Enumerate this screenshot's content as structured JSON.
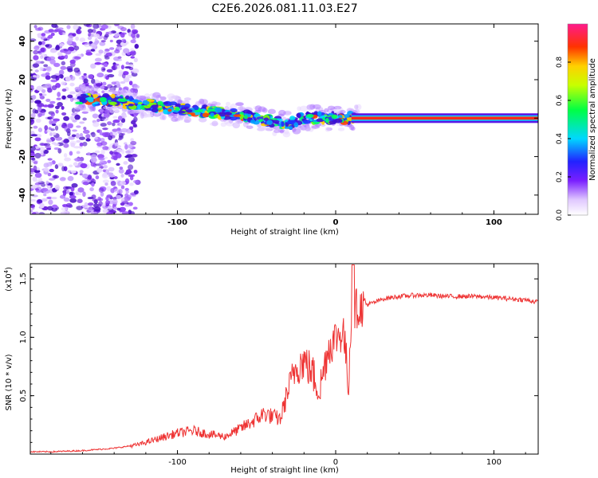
{
  "figure_title": "C2E6.2026.081.11.03.E27",
  "colorbar": {
    "label": "Normalized spectral amplitude",
    "ticks": [
      "0.0",
      "0.2",
      "0.4",
      "0.6",
      "0.8"
    ],
    "range": [
      0,
      1
    ]
  },
  "chart_data": [
    {
      "type": "heatmap",
      "title": "",
      "xlabel": "Height of straight line (km)",
      "ylabel": "Frequency (Hz)",
      "xlim": [
        -193,
        128
      ],
      "ylim": [
        -50,
        49
      ],
      "xticks": [
        "-100",
        "0",
        "100"
      ],
      "yticks": [
        "40",
        "20",
        "0",
        "-20",
        "-40"
      ],
      "ridge": {
        "x": [
          -160,
          -140,
          -120,
          -100,
          -80,
          -60,
          -40,
          -30,
          -20,
          -10,
          0,
          10,
          128
        ],
        "freq": [
          10,
          9,
          7,
          5,
          3,
          2,
          -2,
          -3,
          0,
          0,
          0,
          0,
          0
        ]
      },
      "notes": "Scattered purple low-amplitude energy for x < -130 km; dense multicolour ridge between -160 and 10 km; constant 0 Hz line (max amplitude) from 10 km onward."
    },
    {
      "type": "line",
      "title": "",
      "xlabel": "Height of straight line (km)",
      "ylabel": "SNR (10 * v/v)",
      "y_multiplier": "(x10",
      "y_multiplier_exp": "4",
      "y_multiplier_close": ")",
      "xlim": [
        -193,
        128
      ],
      "ylim": [
        0,
        1.63
      ],
      "xticks": [
        "-100",
        "0",
        "100"
      ],
      "yticks": [
        "0.5",
        "1.0",
        "1.5"
      ],
      "series": [
        {
          "name": "SNR",
          "color": "#ee3333",
          "x": [
            -193,
            -180,
            -160,
            -140,
            -125,
            -115,
            -100,
            -90,
            -80,
            -70,
            -60,
            -50,
            -45,
            -40,
            -35,
            -30,
            -25,
            -20,
            -15,
            -10,
            -5,
            0,
            5,
            8,
            10,
            12,
            15,
            20,
            25,
            30,
            40,
            50,
            60,
            70,
            80,
            90,
            100,
            110,
            120,
            128
          ],
          "values": [
            0.02,
            0.02,
            0.03,
            0.05,
            0.08,
            0.12,
            0.18,
            0.2,
            0.17,
            0.15,
            0.22,
            0.3,
            0.35,
            0.32,
            0.3,
            0.55,
            0.75,
            0.8,
            0.7,
            0.55,
            0.9,
            1.0,
            1.05,
            0.6,
            1.2,
            1.25,
            1.25,
            1.28,
            1.3,
            1.33,
            1.35,
            1.36,
            1.36,
            1.35,
            1.35,
            1.35,
            1.34,
            1.33,
            1.32,
            1.3
          ]
        }
      ]
    }
  ]
}
